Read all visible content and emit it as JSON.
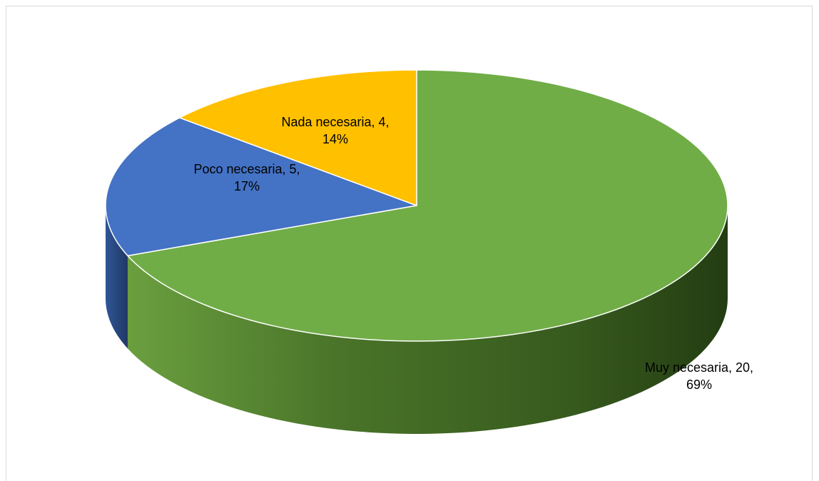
{
  "chart_data": {
    "type": "pie",
    "style": "3d",
    "categories": [
      "Muy necesaria",
      "Poco necesaria",
      "Nada necesaria"
    ],
    "values": [
      20,
      5,
      4
    ],
    "percentages": [
      "69%",
      "17%",
      "14%"
    ],
    "colors": [
      "#70AD47",
      "#4472C4",
      "#FFC000"
    ],
    "labels": [
      {
        "line1": "Muy necesaria, 20,",
        "line2": "69%"
      },
      {
        "line1": "Poco necesaria, 5,",
        "line2": "17%"
      },
      {
        "line1": "Nada necesaria, 4,",
        "line2": "14%"
      }
    ],
    "title": "",
    "legend": "none",
    "start_angle_deg": 0,
    "direction": "clockwise"
  }
}
